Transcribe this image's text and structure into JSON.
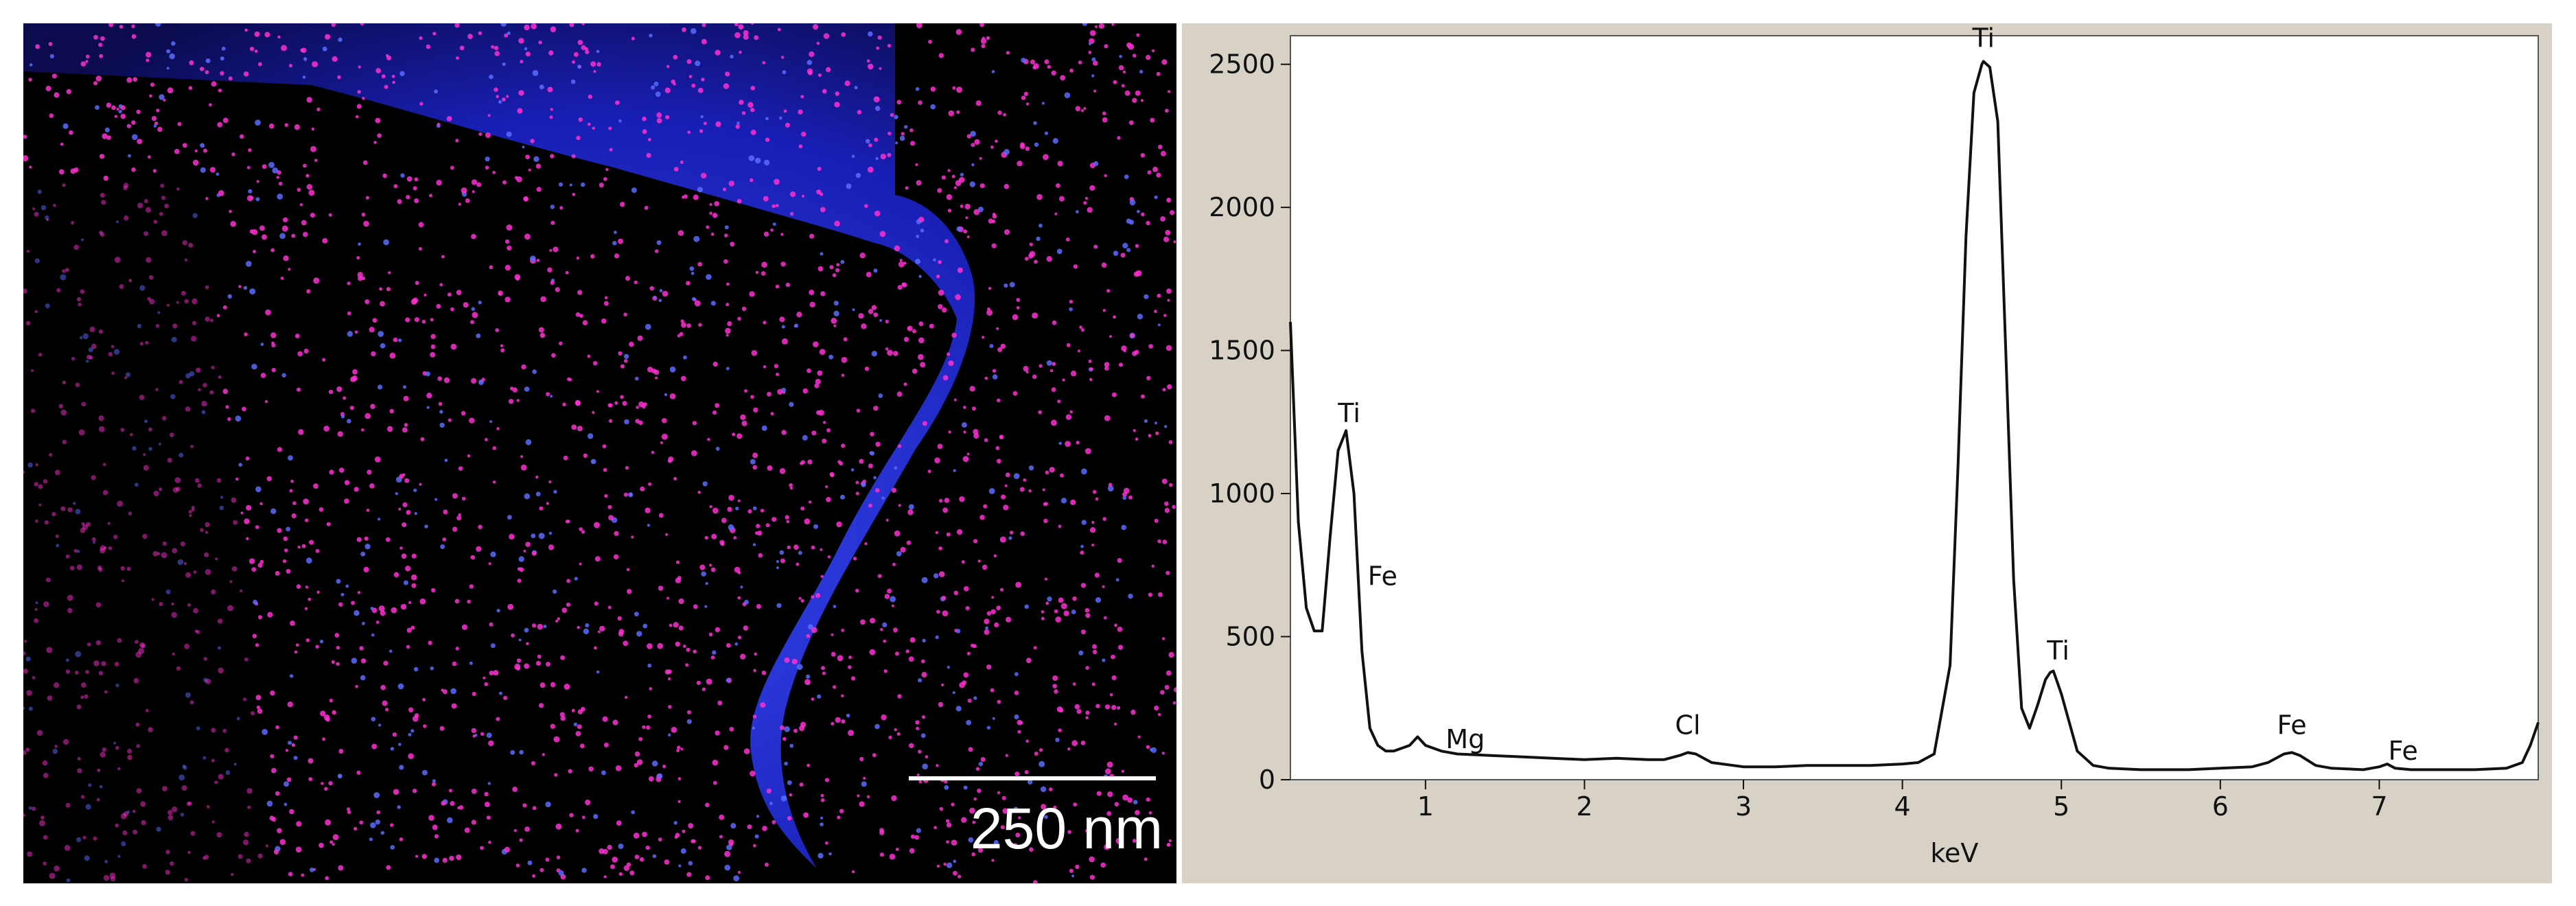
{
  "map_panel": {
    "scale_bar_label": "250 nm",
    "colors": {
      "background": "#000000",
      "titanium": "#2a2cff",
      "iron": "#ff2fd2"
    }
  },
  "chart_data": {
    "type": "line",
    "title": "",
    "xlabel": "keV",
    "ylabel": "",
    "xlim": [
      0.15,
      8.0
    ],
    "ylim": [
      0,
      2600
    ],
    "x_ticks": [
      1,
      2,
      3,
      4,
      5,
      6,
      7
    ],
    "y_ticks": [
      0,
      500,
      1000,
      1500,
      2000,
      2500
    ],
    "grid": false,
    "series": [
      {
        "x": [
          0.15,
          0.2,
          0.25,
          0.3,
          0.35,
          0.4,
          0.45,
          0.5,
          0.55,
          0.6,
          0.65,
          0.7,
          0.75,
          0.8,
          0.9,
          0.95,
          1.0,
          1.1,
          1.2,
          1.4,
          1.6,
          1.8,
          2.0,
          2.2,
          2.4,
          2.5,
          2.6,
          2.65,
          2.7,
          2.8,
          3.0,
          3.2,
          3.4,
          3.6,
          3.8,
          4.0,
          4.1,
          4.2,
          4.3,
          4.35,
          4.4,
          4.45,
          4.5,
          4.51,
          4.55,
          4.6,
          4.65,
          4.7,
          4.75,
          4.8,
          4.85,
          4.9,
          4.93,
          4.95,
          5.0,
          5.05,
          5.1,
          5.2,
          5.3,
          5.5,
          5.8,
          6.0,
          6.2,
          6.3,
          6.4,
          6.45,
          6.5,
          6.6,
          6.7,
          6.9,
          7.0,
          7.05,
          7.1,
          7.2,
          7.4,
          7.6,
          7.8,
          7.9,
          7.95,
          8.0
        ],
        "y": [
          1600,
          900,
          600,
          520,
          520,
          850,
          1150,
          1220,
          1000,
          450,
          180,
          120,
          100,
          100,
          120,
          150,
          120,
          100,
          90,
          85,
          80,
          75,
          70,
          75,
          70,
          70,
          85,
          95,
          90,
          60,
          45,
          45,
          50,
          50,
          50,
          55,
          60,
          90,
          400,
          1100,
          1900,
          2400,
          2500,
          2510,
          2490,
          2300,
          1500,
          700,
          250,
          180,
          260,
          350,
          375,
          380,
          300,
          200,
          100,
          50,
          40,
          35,
          35,
          40,
          45,
          60,
          90,
          95,
          85,
          50,
          40,
          35,
          45,
          55,
          40,
          35,
          35,
          35,
          40,
          60,
          120,
          200
        ]
      }
    ],
    "peak_labels": [
      {
        "text": "Ti",
        "x": 0.52,
        "y": 1250
      },
      {
        "text": "Fe",
        "x": 0.73,
        "y": 680
      },
      {
        "text": "Mg",
        "x": 1.25,
        "y": 110
      },
      {
        "text": "Cl",
        "x": 2.65,
        "y": 160
      },
      {
        "text": "Ti",
        "x": 4.51,
        "y": 2560
      },
      {
        "text": "Ti",
        "x": 4.98,
        "y": 420
      },
      {
        "text": "Fe",
        "x": 6.45,
        "y": 160
      },
      {
        "text": "Fe",
        "x": 7.15,
        "y": 70
      }
    ]
  }
}
